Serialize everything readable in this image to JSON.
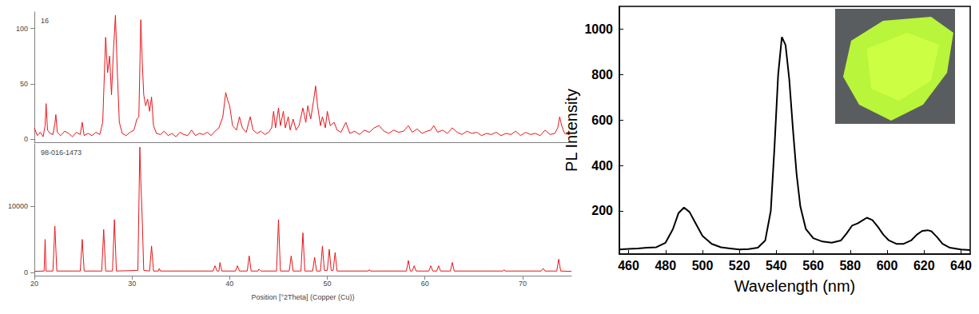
{
  "chart_data": [
    {
      "type": "line",
      "title": "16",
      "color": "#e8141a",
      "grid": false,
      "tick_labels": "y",
      "xlim": [
        20,
        75
      ],
      "xticks": [
        20,
        30,
        40,
        50,
        60,
        70
      ],
      "ylim": [
        -3,
        115
      ],
      "yticks": [
        0,
        50,
        100
      ],
      "x": [
        20,
        20.3,
        20.6,
        20.9,
        21.1,
        21.2,
        21.35,
        21.6,
        21.9,
        22.1,
        22.2,
        22.35,
        22.7,
        23.1,
        23.5,
        23.9,
        24.3,
        24.7,
        24.9,
        25.1,
        25.5,
        25.9,
        26.3,
        26.7,
        27.0,
        27.3,
        27.5,
        27.7,
        27.9,
        28.1,
        28.3,
        28.5,
        28.7,
        29.0,
        29.4,
        29.8,
        30.2,
        30.5,
        30.7,
        30.9,
        31.05,
        31.2,
        31.4,
        31.6,
        31.8,
        32.0,
        32.2,
        32.5,
        32.9,
        33.3,
        33.7,
        34.1,
        34.5,
        34.9,
        35.3,
        35.7,
        36.1,
        36.5,
        36.9,
        37.3,
        37.7,
        38.1,
        38.5,
        38.9,
        39.3,
        39.6,
        39.8,
        40.0,
        40.3,
        40.7,
        41.0,
        41.3,
        41.7,
        42.1,
        42.4,
        42.8,
        43.2,
        43.6,
        44.0,
        44.3,
        44.5,
        44.7,
        45.0,
        45.2,
        45.5,
        45.7,
        46.0,
        46.2,
        46.5,
        46.8,
        47.1,
        47.5,
        47.8,
        48.0,
        48.3,
        48.6,
        48.8,
        49.0,
        49.3,
        49.5,
        49.8,
        50.0,
        50.3,
        50.7,
        51.0,
        51.4,
        51.9,
        52.3,
        52.8,
        53.3,
        53.8,
        54.3,
        54.8,
        55.3,
        55.8,
        56.3,
        56.8,
        57.3,
        57.8,
        58.3,
        58.7,
        59.2,
        59.7,
        60.2,
        60.6,
        60.9,
        61.3,
        61.8,
        62.3,
        62.8,
        63.3,
        63.8,
        64.3,
        64.8,
        65.3,
        65.8,
        66.3,
        66.8,
        67.3,
        67.8,
        68.3,
        68.8,
        69.3,
        69.8,
        70.3,
        70.8,
        71.3,
        71.8,
        72.3,
        72.8,
        73.3,
        73.6,
        73.8,
        74.0,
        74.3,
        74.7,
        75
      ],
      "values": [
        10,
        3,
        6,
        2,
        12,
        32,
        8,
        5,
        4,
        14,
        22,
        6,
        3,
        7,
        5,
        2,
        6,
        4,
        15,
        3,
        5,
        3,
        6,
        4,
        15,
        92,
        60,
        75,
        40,
        80,
        112,
        60,
        15,
        5,
        3,
        6,
        8,
        18,
        20,
        108,
        70,
        40,
        30,
        36,
        25,
        38,
        12,
        5,
        4,
        7,
        3,
        5,
        2,
        6,
        4,
        3,
        8,
        3,
        5,
        4,
        6,
        3,
        7,
        10,
        20,
        42,
        35,
        30,
        12,
        8,
        20,
        10,
        6,
        20,
        8,
        5,
        7,
        4,
        6,
        10,
        25,
        10,
        28,
        12,
        25,
        10,
        20,
        8,
        18,
        8,
        12,
        28,
        15,
        30,
        18,
        35,
        48,
        30,
        12,
        20,
        10,
        25,
        12,
        15,
        8,
        6,
        15,
        5,
        7,
        4,
        8,
        6,
        10,
        12,
        7,
        5,
        8,
        6,
        7,
        12,
        6,
        9,
        5,
        7,
        8,
        12,
        6,
        8,
        5,
        10,
        6,
        4,
        7,
        5,
        6,
        3,
        5,
        4,
        6,
        3,
        5,
        4,
        7,
        3,
        6,
        4,
        5,
        3,
        8,
        4,
        5,
        10,
        20,
        12,
        5,
        4,
        5
      ]
    },
    {
      "type": "line",
      "title": "98-016-1473",
      "x_label": "Position [°2Theta] (Copper (Cu))",
      "color": "#e8141a",
      "grid": false,
      "xlim": [
        20,
        75
      ],
      "xticks": [
        20,
        30,
        40,
        50,
        60,
        70
      ],
      "ylim": [
        -500,
        19500
      ],
      "yticks": [
        0,
        10000
      ],
      "x": [
        20,
        21.0,
        21.1,
        21.2,
        21.9,
        22.1,
        22.3,
        24.7,
        24.9,
        25.1,
        26.9,
        27.1,
        27.3,
        28.0,
        28.2,
        28.4,
        30.6,
        30.8,
        30.9,
        31.05,
        31.2,
        31.8,
        32.0,
        32.2,
        32.7,
        32.8,
        32.9,
        38.3,
        38.5,
        38.7,
        38.9,
        39.0,
        39.2,
        40.6,
        40.8,
        41.0,
        41.8,
        42.0,
        42.2,
        42.9,
        43.0,
        43.2,
        44.8,
        45.0,
        45.2,
        46.1,
        46.3,
        46.5,
        47.3,
        47.5,
        47.7,
        48.5,
        48.7,
        48.9,
        49.3,
        49.5,
        49.7,
        50.0,
        50.2,
        50.4,
        50.6,
        50.8,
        51.0,
        54.2,
        54.3,
        54.4,
        58.1,
        58.3,
        58.5,
        58.7,
        58.9,
        59.1,
        60.4,
        60.6,
        60.8,
        61.2,
        61.4,
        61.6,
        62.6,
        62.8,
        63.0,
        68.0,
        68.1,
        68.2,
        71.9,
        72.1,
        72.3,
        73.5,
        73.7,
        73.9,
        75
      ],
      "values": [
        150,
        200,
        5000,
        200,
        200,
        7000,
        200,
        200,
        5000,
        200,
        200,
        6500,
        200,
        200,
        8000,
        200,
        300,
        19000,
        14000,
        8000,
        300,
        200,
        4000,
        200,
        200,
        600,
        200,
        200,
        1000,
        200,
        200,
        1500,
        200,
        200,
        1000,
        200,
        200,
        2500,
        200,
        200,
        500,
        200,
        200,
        8000,
        200,
        200,
        2500,
        200,
        200,
        6000,
        200,
        200,
        2300,
        200,
        200,
        4000,
        300,
        300,
        3500,
        300,
        300,
        3000,
        200,
        200,
        400,
        200,
        200,
        1800,
        200,
        200,
        1000,
        200,
        200,
        1000,
        200,
        200,
        1000,
        200,
        200,
        1500,
        200,
        200,
        400,
        200,
        200,
        600,
        200,
        200,
        2000,
        200,
        150
      ]
    },
    {
      "type": "line",
      "x_label": "Wavelength (nm)",
      "y_label": "PL Intensity",
      "color": "#000000",
      "grid": false,
      "xlim": [
        455,
        645
      ],
      "xticks": [
        460,
        480,
        500,
        520,
        540,
        560,
        580,
        600,
        620,
        640
      ],
      "ylim": [
        10,
        1100
      ],
      "yticks": [
        200,
        400,
        600,
        800,
        1000
      ],
      "x": [
        455,
        460,
        465,
        470,
        475,
        480,
        484,
        487,
        490,
        493,
        496,
        500,
        505,
        510,
        515,
        520,
        525,
        530,
        534,
        537,
        539,
        541,
        543,
        545,
        547,
        549,
        551,
        553,
        556,
        560,
        565,
        570,
        575,
        578,
        581,
        584,
        587,
        589,
        592,
        595,
        598,
        601,
        605,
        609,
        613,
        616,
        619,
        622,
        624,
        627,
        630,
        634,
        640,
        645
      ],
      "values": [
        30,
        33,
        35,
        38,
        40,
        60,
        120,
        190,
        215,
        195,
        150,
        90,
        55,
        40,
        35,
        30,
        32,
        38,
        70,
        200,
        480,
        800,
        965,
        930,
        780,
        560,
        360,
        220,
        120,
        80,
        65,
        60,
        70,
        100,
        135,
        145,
        160,
        170,
        160,
        130,
        95,
        70,
        55,
        55,
        70,
        95,
        112,
        115,
        110,
        85,
        55,
        38,
        30,
        28
      ]
    }
  ]
}
